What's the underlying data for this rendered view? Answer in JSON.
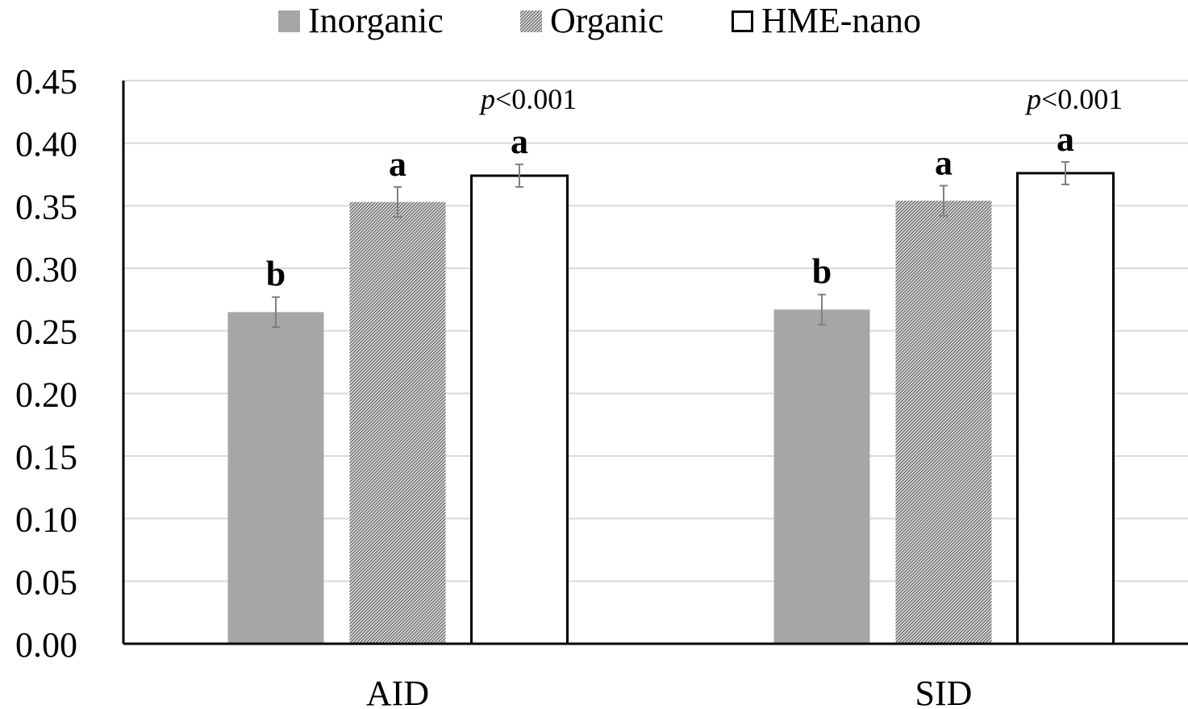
{
  "chart_data": {
    "type": "bar",
    "categories": [
      "AID",
      "SID"
    ],
    "series": [
      {
        "name": "Inorganic",
        "values": [
          0.265,
          0.267
        ],
        "errors": [
          0.012,
          0.012
        ],
        "letters": [
          "b",
          "b"
        ],
        "style": "solid",
        "color": "#a6a6a6"
      },
      {
        "name": "Organic",
        "values": [
          0.353,
          0.354
        ],
        "errors": [
          0.012,
          0.012
        ],
        "letters": [
          "a",
          "a"
        ],
        "style": "hatched",
        "color": "#bfbfbf"
      },
      {
        "name": "HME-nano",
        "values": [
          0.374,
          0.376
        ],
        "errors": [
          0.009,
          0.009
        ],
        "letters": [
          "a",
          "a"
        ],
        "style": "outline",
        "color": "#ffffff"
      }
    ],
    "annotations": [
      "p<0.001",
      "p<0.001"
    ],
    "yticks": [
      "0.00",
      "0.05",
      "0.10",
      "0.15",
      "0.20",
      "0.25",
      "0.30",
      "0.35",
      "0.40",
      "0.45"
    ],
    "ylim": [
      0,
      0.45
    ],
    "grid": true,
    "legend_position": "top"
  }
}
